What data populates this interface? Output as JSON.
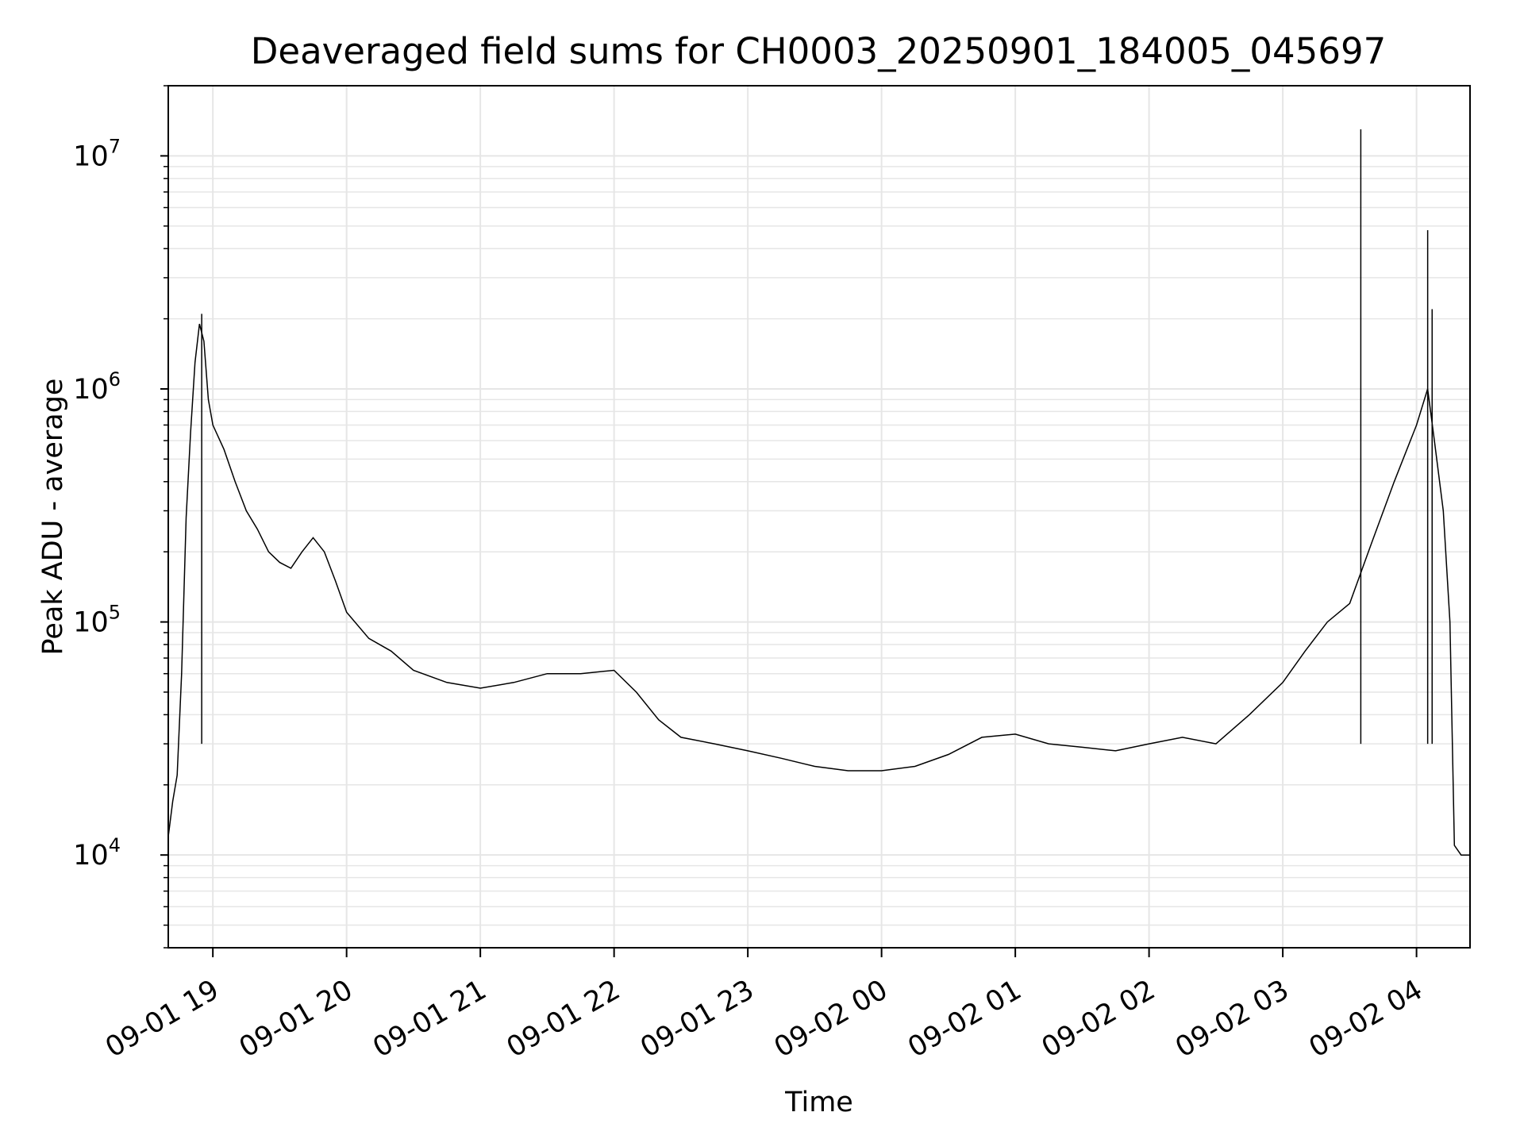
{
  "chart_data": {
    "type": "line",
    "title": "Deaveraged field sums for CH0003_20250901_184005_045697",
    "xlabel": "Time",
    "ylabel": "Peak ADU - average",
    "y_scale": "log",
    "ylim": [
      4000,
      20000000
    ],
    "xlim": [
      "2025-09-01 18:40",
      "2025-09-02 04:24"
    ],
    "grid": true,
    "line_color": "#000000",
    "grid_color": "#e6e6e6",
    "x_ticks": [
      {
        "t": "2025-09-01 19:00",
        "label": "09-01 19"
      },
      {
        "t": "2025-09-01 20:00",
        "label": "09-01 20"
      },
      {
        "t": "2025-09-01 21:00",
        "label": "09-01 21"
      },
      {
        "t": "2025-09-01 22:00",
        "label": "09-01 22"
      },
      {
        "t": "2025-09-01 23:00",
        "label": "09-01 23"
      },
      {
        "t": "2025-09-02 00:00",
        "label": "09-02 00"
      },
      {
        "t": "2025-09-02 01:00",
        "label": "09-02 01"
      },
      {
        "t": "2025-09-02 02:00",
        "label": "09-02 02"
      },
      {
        "t": "2025-09-02 03:00",
        "label": "09-02 03"
      },
      {
        "t": "2025-09-02 04:00",
        "label": "09-02 04"
      }
    ],
    "y_ticks": [
      {
        "value": 10000,
        "base": "10",
        "exp": "4"
      },
      {
        "value": 100000,
        "base": "10",
        "exp": "5"
      },
      {
        "value": 1000000,
        "base": "10",
        "exp": "6"
      },
      {
        "value": 10000000,
        "base": "10",
        "exp": "7"
      }
    ],
    "series": [
      {
        "points": [
          [
            "2025-09-01 18:40",
            12000
          ],
          [
            "2025-09-01 18:42",
            17000
          ],
          [
            "2025-09-01 18:44",
            22000
          ],
          [
            "2025-09-01 18:46",
            60000
          ],
          [
            "2025-09-01 18:48",
            280000
          ],
          [
            "2025-09-01 18:50",
            650000
          ],
          [
            "2025-09-01 18:52",
            1300000
          ],
          [
            "2025-09-01 18:54",
            1900000
          ],
          [
            "2025-09-01 18:56",
            1600000
          ],
          [
            "2025-09-01 18:58",
            900000
          ],
          [
            "2025-09-01 19:00",
            700000
          ],
          [
            "2025-09-01 19:05",
            550000
          ],
          [
            "2025-09-01 19:10",
            400000
          ],
          [
            "2025-09-01 19:15",
            300000
          ],
          [
            "2025-09-01 19:20",
            250000
          ],
          [
            "2025-09-01 19:25",
            200000
          ],
          [
            "2025-09-01 19:30",
            180000
          ],
          [
            "2025-09-01 19:35",
            170000
          ],
          [
            "2025-09-01 19:40",
            200000
          ],
          [
            "2025-09-01 19:45",
            230000
          ],
          [
            "2025-09-01 19:50",
            200000
          ],
          [
            "2025-09-01 19:55",
            150000
          ],
          [
            "2025-09-01 20:00",
            110000
          ],
          [
            "2025-09-01 20:10",
            85000
          ],
          [
            "2025-09-01 20:20",
            75000
          ],
          [
            "2025-09-01 20:30",
            62000
          ],
          [
            "2025-09-01 20:45",
            55000
          ],
          [
            "2025-09-01 21:00",
            52000
          ],
          [
            "2025-09-01 21:15",
            55000
          ],
          [
            "2025-09-01 21:30",
            60000
          ],
          [
            "2025-09-01 21:45",
            60000
          ],
          [
            "2025-09-01 22:00",
            62000
          ],
          [
            "2025-09-01 22:10",
            50000
          ],
          [
            "2025-09-01 22:20",
            38000
          ],
          [
            "2025-09-01 22:30",
            32000
          ],
          [
            "2025-09-01 22:45",
            30000
          ],
          [
            "2025-09-01 23:00",
            28000
          ],
          [
            "2025-09-01 23:15",
            26000
          ],
          [
            "2025-09-01 23:30",
            24000
          ],
          [
            "2025-09-01 23:45",
            23000
          ],
          [
            "2025-09-02 00:00",
            23000
          ],
          [
            "2025-09-02 00:15",
            24000
          ],
          [
            "2025-09-02 00:30",
            27000
          ],
          [
            "2025-09-02 00:45",
            32000
          ],
          [
            "2025-09-02 01:00",
            33000
          ],
          [
            "2025-09-02 01:15",
            30000
          ],
          [
            "2025-09-02 01:30",
            29000
          ],
          [
            "2025-09-02 01:45",
            28000
          ],
          [
            "2025-09-02 02:00",
            30000
          ],
          [
            "2025-09-02 02:15",
            32000
          ],
          [
            "2025-09-02 02:30",
            30000
          ],
          [
            "2025-09-02 02:45",
            40000
          ],
          [
            "2025-09-02 03:00",
            55000
          ],
          [
            "2025-09-02 03:10",
            75000
          ],
          [
            "2025-09-02 03:20",
            100000
          ],
          [
            "2025-09-02 03:30",
            120000
          ],
          [
            "2025-09-02 03:40",
            220000
          ],
          [
            "2025-09-02 03:50",
            400000
          ],
          [
            "2025-09-02 04:00",
            700000
          ],
          [
            "2025-09-02 04:05",
            1000000
          ],
          [
            "2025-09-02 04:08",
            600000
          ],
          [
            "2025-09-02 04:12",
            300000
          ],
          [
            "2025-09-02 04:15",
            100000
          ],
          [
            "2025-09-02 04:17",
            11000
          ],
          [
            "2025-09-02 04:20",
            10000
          ],
          [
            "2025-09-02 04:24",
            10000
          ]
        ],
        "spikes": [
          [
            "2025-09-02 03:35",
            13000000
          ],
          [
            "2025-09-02 04:05",
            4800000
          ],
          [
            "2025-09-02 04:07",
            2200000
          ],
          [
            "2025-09-01 18:55",
            2100000
          ]
        ]
      }
    ]
  }
}
